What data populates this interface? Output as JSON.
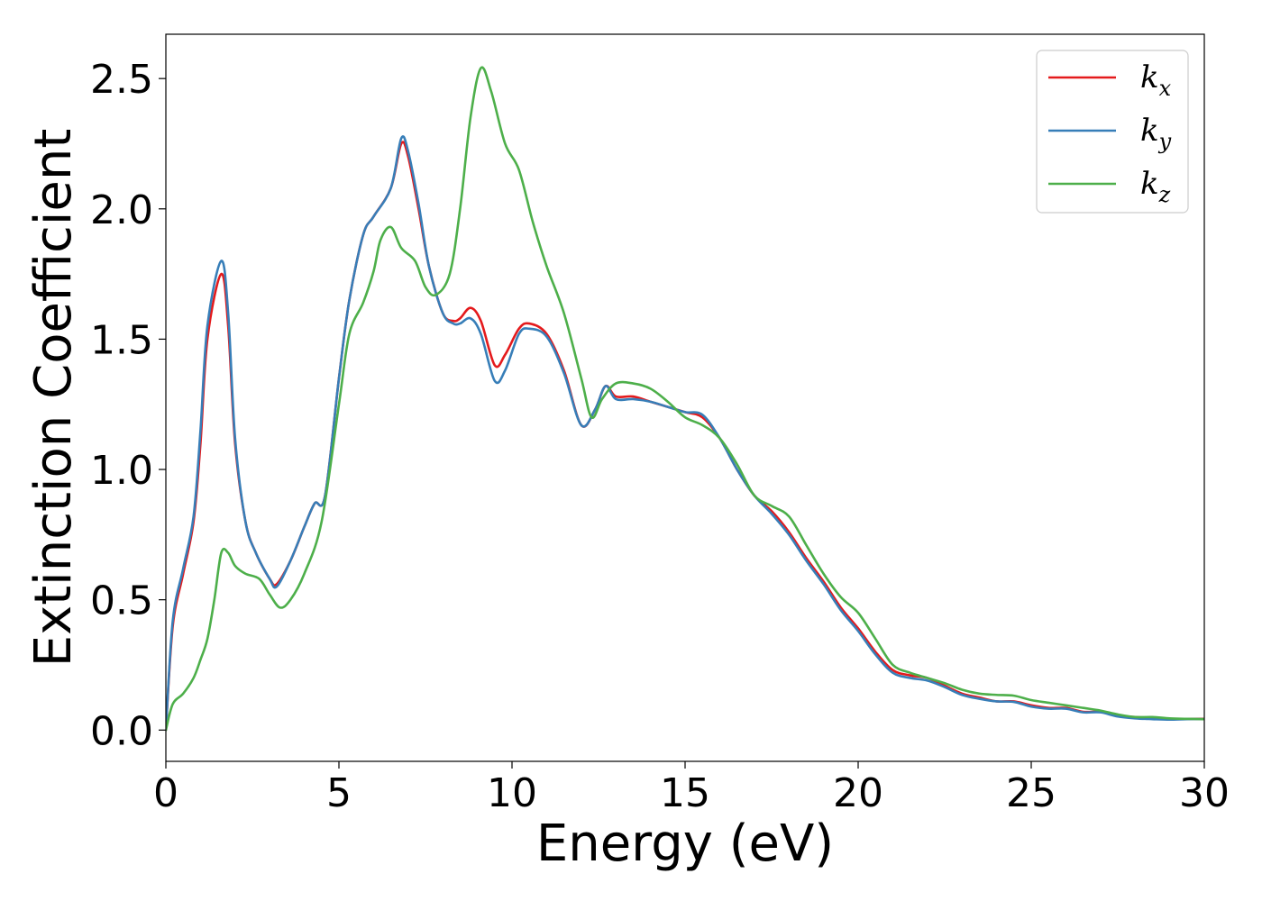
{
  "chart_data": {
    "type": "line",
    "xlabel": "Energy (eV)",
    "ylabel": "Extinction Coefficient",
    "xlim": [
      0,
      30
    ],
    "ylim": [
      -0.12,
      2.67
    ],
    "xticks": [
      0,
      5,
      10,
      15,
      20,
      25,
      30
    ],
    "xtick_labels": [
      "0",
      "5",
      "10",
      "15",
      "20",
      "25",
      "30"
    ],
    "yticks": [
      0.0,
      0.5,
      1.0,
      1.5,
      2.0,
      2.5
    ],
    "ytick_labels": [
      "0.0",
      "0.5",
      "1.0",
      "1.5",
      "2.0",
      "2.5"
    ],
    "grid": false,
    "legend_position": "top-right",
    "series": [
      {
        "name": "k_x",
        "label_base": "k",
        "label_sub": "x",
        "color": "#e41a1c",
        "points": [
          [
            0,
            0
          ],
          [
            0.2,
            0.4
          ],
          [
            0.5,
            0.6
          ],
          [
            0.8,
            0.8
          ],
          [
            1.0,
            1.1
          ],
          [
            1.2,
            1.5
          ],
          [
            1.6,
            1.75
          ],
          [
            1.8,
            1.55
          ],
          [
            2.0,
            1.1
          ],
          [
            2.3,
            0.8
          ],
          [
            2.6,
            0.68
          ],
          [
            3.0,
            0.58
          ],
          [
            3.2,
            0.56
          ],
          [
            3.6,
            0.65
          ],
          [
            4.0,
            0.78
          ],
          [
            4.3,
            0.87
          ],
          [
            4.6,
            0.9
          ],
          [
            5.0,
            1.35
          ],
          [
            5.3,
            1.65
          ],
          [
            5.7,
            1.9
          ],
          [
            6.0,
            1.97
          ],
          [
            6.5,
            2.08
          ],
          [
            6.8,
            2.25
          ],
          [
            7.0,
            2.2
          ],
          [
            7.3,
            2.0
          ],
          [
            7.6,
            1.78
          ],
          [
            8.0,
            1.6
          ],
          [
            8.3,
            1.57
          ],
          [
            8.5,
            1.58
          ],
          [
            8.8,
            1.62
          ],
          [
            9.1,
            1.57
          ],
          [
            9.5,
            1.4
          ],
          [
            9.8,
            1.44
          ],
          [
            10.2,
            1.54
          ],
          [
            10.5,
            1.56
          ],
          [
            11.0,
            1.52
          ],
          [
            11.5,
            1.38
          ],
          [
            12.0,
            1.17
          ],
          [
            12.4,
            1.23
          ],
          [
            12.7,
            1.32
          ],
          [
            13.0,
            1.28
          ],
          [
            13.5,
            1.28
          ],
          [
            14.0,
            1.26
          ],
          [
            14.5,
            1.24
          ],
          [
            15.0,
            1.22
          ],
          [
            15.5,
            1.2
          ],
          [
            16.0,
            1.12
          ],
          [
            16.5,
            1.0
          ],
          [
            17.0,
            0.9
          ],
          [
            17.5,
            0.84
          ],
          [
            18.0,
            0.76
          ],
          [
            18.5,
            0.66
          ],
          [
            19.0,
            0.57
          ],
          [
            19.5,
            0.47
          ],
          [
            20.0,
            0.39
          ],
          [
            20.5,
            0.3
          ],
          [
            21.0,
            0.23
          ],
          [
            21.5,
            0.21
          ],
          [
            22.0,
            0.2
          ],
          [
            22.5,
            0.17
          ],
          [
            23.0,
            0.14
          ],
          [
            23.5,
            0.125
          ],
          [
            24.0,
            0.11
          ],
          [
            24.5,
            0.11
          ],
          [
            25.0,
            0.095
          ],
          [
            25.5,
            0.085
          ],
          [
            26.0,
            0.085
          ],
          [
            26.5,
            0.07
          ],
          [
            27.0,
            0.07
          ],
          [
            27.5,
            0.055
          ],
          [
            28.0,
            0.05
          ],
          [
            28.5,
            0.045
          ],
          [
            29.0,
            0.043
          ],
          [
            29.5,
            0.043
          ],
          [
            30.0,
            0.043
          ]
        ]
      },
      {
        "name": "k_y",
        "label_base": "k",
        "label_sub": "y",
        "color": "#377eb8",
        "points": [
          [
            0,
            0
          ],
          [
            0.2,
            0.42
          ],
          [
            0.5,
            0.62
          ],
          [
            0.8,
            0.82
          ],
          [
            1.0,
            1.15
          ],
          [
            1.2,
            1.55
          ],
          [
            1.6,
            1.8
          ],
          [
            1.8,
            1.6
          ],
          [
            2.0,
            1.12
          ],
          [
            2.3,
            0.8
          ],
          [
            2.6,
            0.68
          ],
          [
            3.0,
            0.58
          ],
          [
            3.2,
            0.55
          ],
          [
            3.6,
            0.65
          ],
          [
            4.0,
            0.78
          ],
          [
            4.3,
            0.87
          ],
          [
            4.6,
            0.9
          ],
          [
            5.0,
            1.35
          ],
          [
            5.3,
            1.65
          ],
          [
            5.7,
            1.9
          ],
          [
            6.0,
            1.97
          ],
          [
            6.5,
            2.08
          ],
          [
            6.8,
            2.27
          ],
          [
            7.0,
            2.22
          ],
          [
            7.3,
            2.02
          ],
          [
            7.6,
            1.78
          ],
          [
            8.0,
            1.6
          ],
          [
            8.3,
            1.56
          ],
          [
            8.5,
            1.56
          ],
          [
            8.8,
            1.58
          ],
          [
            9.1,
            1.52
          ],
          [
            9.5,
            1.34
          ],
          [
            9.8,
            1.38
          ],
          [
            10.2,
            1.52
          ],
          [
            10.5,
            1.54
          ],
          [
            11.0,
            1.51
          ],
          [
            11.5,
            1.37
          ],
          [
            12.0,
            1.17
          ],
          [
            12.4,
            1.23
          ],
          [
            12.7,
            1.32
          ],
          [
            13.0,
            1.27
          ],
          [
            13.5,
            1.27
          ],
          [
            14.0,
            1.26
          ],
          [
            14.5,
            1.24
          ],
          [
            15.0,
            1.22
          ],
          [
            15.5,
            1.21
          ],
          [
            16.0,
            1.12
          ],
          [
            16.5,
            1.0
          ],
          [
            17.0,
            0.9
          ],
          [
            17.5,
            0.83
          ],
          [
            18.0,
            0.75
          ],
          [
            18.5,
            0.65
          ],
          [
            19.0,
            0.56
          ],
          [
            19.5,
            0.46
          ],
          [
            20.0,
            0.38
          ],
          [
            20.5,
            0.29
          ],
          [
            21.0,
            0.22
          ],
          [
            21.5,
            0.2
          ],
          [
            22.0,
            0.19
          ],
          [
            22.5,
            0.165
          ],
          [
            23.0,
            0.135
          ],
          [
            23.5,
            0.12
          ],
          [
            24.0,
            0.11
          ],
          [
            24.5,
            0.108
          ],
          [
            25.0,
            0.09
          ],
          [
            25.5,
            0.082
          ],
          [
            26.0,
            0.082
          ],
          [
            26.5,
            0.068
          ],
          [
            27.0,
            0.068
          ],
          [
            27.5,
            0.052
          ],
          [
            28.0,
            0.045
          ],
          [
            28.5,
            0.042
          ],
          [
            29.0,
            0.04
          ],
          [
            29.5,
            0.042
          ],
          [
            30.0,
            0.042
          ]
        ]
      },
      {
        "name": "k_z",
        "label_base": "k",
        "label_sub": "z",
        "color": "#4daf4a",
        "points": [
          [
            0,
            0
          ],
          [
            0.2,
            0.1
          ],
          [
            0.5,
            0.14
          ],
          [
            0.8,
            0.2
          ],
          [
            1.0,
            0.27
          ],
          [
            1.2,
            0.35
          ],
          [
            1.4,
            0.5
          ],
          [
            1.6,
            0.68
          ],
          [
            1.8,
            0.68
          ],
          [
            2.0,
            0.63
          ],
          [
            2.3,
            0.6
          ],
          [
            2.7,
            0.58
          ],
          [
            3.0,
            0.52
          ],
          [
            3.3,
            0.47
          ],
          [
            3.6,
            0.5
          ],
          [
            4.0,
            0.6
          ],
          [
            4.5,
            0.8
          ],
          [
            5.0,
            1.25
          ],
          [
            5.3,
            1.52
          ],
          [
            5.7,
            1.64
          ],
          [
            6.0,
            1.76
          ],
          [
            6.2,
            1.88
          ],
          [
            6.5,
            1.93
          ],
          [
            6.8,
            1.85
          ],
          [
            7.2,
            1.8
          ],
          [
            7.5,
            1.7
          ],
          [
            7.8,
            1.67
          ],
          [
            8.2,
            1.75
          ],
          [
            8.5,
            2.0
          ],
          [
            8.8,
            2.35
          ],
          [
            9.1,
            2.54
          ],
          [
            9.4,
            2.45
          ],
          [
            9.8,
            2.25
          ],
          [
            10.2,
            2.15
          ],
          [
            10.6,
            1.95
          ],
          [
            11.0,
            1.78
          ],
          [
            11.5,
            1.6
          ],
          [
            12.0,
            1.35
          ],
          [
            12.3,
            1.2
          ],
          [
            12.6,
            1.27
          ],
          [
            13.0,
            1.33
          ],
          [
            13.5,
            1.33
          ],
          [
            14.0,
            1.31
          ],
          [
            14.5,
            1.26
          ],
          [
            15.0,
            1.2
          ],
          [
            15.5,
            1.17
          ],
          [
            16.0,
            1.12
          ],
          [
            16.5,
            1.02
          ],
          [
            17.0,
            0.9
          ],
          [
            17.5,
            0.86
          ],
          [
            18.0,
            0.82
          ],
          [
            18.5,
            0.71
          ],
          [
            19.0,
            0.6
          ],
          [
            19.5,
            0.51
          ],
          [
            20.0,
            0.45
          ],
          [
            20.5,
            0.35
          ],
          [
            21.0,
            0.25
          ],
          [
            21.5,
            0.22
          ],
          [
            22.0,
            0.2
          ],
          [
            22.5,
            0.18
          ],
          [
            23.0,
            0.155
          ],
          [
            23.5,
            0.14
          ],
          [
            24.0,
            0.135
          ],
          [
            24.5,
            0.132
          ],
          [
            25.0,
            0.115
          ],
          [
            25.5,
            0.105
          ],
          [
            26.0,
            0.095
          ],
          [
            26.5,
            0.085
          ],
          [
            27.0,
            0.075
          ],
          [
            27.5,
            0.06
          ],
          [
            28.0,
            0.05
          ],
          [
            28.5,
            0.05
          ],
          [
            29.0,
            0.045
          ],
          [
            29.5,
            0.043
          ],
          [
            30.0,
            0.042
          ]
        ]
      }
    ]
  }
}
